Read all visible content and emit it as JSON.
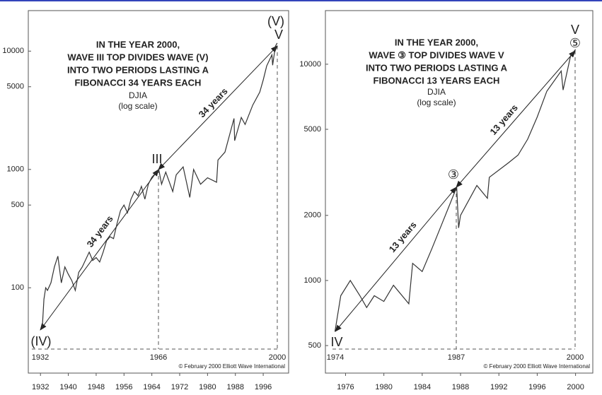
{
  "chart_data": [
    {
      "type": "line",
      "log_scale": true,
      "title": [
        "IN THE YEAR 2000,",
        "WAVE III TOP DIVIDES WAVE (V)",
        "INTO TWO PERIODS LASTING A",
        "FIBONACCI 34 YEARS EACH"
      ],
      "subtitle": [
        "DJIA",
        "(log scale)"
      ],
      "annotations": [
        "(V)",
        "V",
        "III",
        "(IV)",
        "34 years",
        "34 years",
        "1932",
        "1966",
        "2000"
      ],
      "credit": "© February 2000 Elliott Wave International",
      "x": [
        1932.5,
        1933,
        1933.5,
        1934,
        1935,
        1936,
        1937,
        1938,
        1939,
        1940,
        1941,
        1942,
        1943,
        1944,
        1946,
        1947,
        1948,
        1949,
        1950,
        1951,
        1952,
        1953,
        1954,
        1955,
        1956,
        1957,
        1958,
        1959,
        1960,
        1961,
        1962,
        1963,
        1964,
        1966,
        1966.8,
        1968,
        1970,
        1971,
        1973,
        1974.9,
        1976,
        1978,
        1980,
        1982.6,
        1983,
        1985,
        1987.6,
        1987.8,
        1989.7,
        1990.8,
        1993,
        1995,
        1996,
        1997,
        1998.5,
        1998.7,
        1999.5,
        2000
      ],
      "values": [
        45,
        80,
        100,
        95,
        110,
        150,
        185,
        110,
        150,
        130,
        115,
        95,
        135,
        150,
        200,
        170,
        180,
        165,
        200,
        250,
        270,
        260,
        350,
        450,
        500,
        430,
        560,
        650,
        600,
        720,
        560,
        750,
        860,
        995,
        750,
        950,
        650,
        900,
        1050,
        580,
        1000,
        750,
        850,
        780,
        1200,
        1400,
        2700,
        1750,
        2750,
        2400,
        3500,
        4500,
        5700,
        7500,
        9300,
        7600,
        11000,
        11700
      ],
      "color": "#333333",
      "xlim": [
        1928.5,
        2003.3
      ],
      "ylim": [
        19,
        22000
      ],
      "xticks": [
        1932,
        1940,
        1948,
        1956,
        1964,
        1972,
        1980,
        1988,
        1996
      ],
      "yticks": [
        100,
        500,
        1000,
        5000,
        10000
      ]
    },
    {
      "type": "line",
      "log_scale": true,
      "title": [
        "IN THE YEAR 2000,",
        "WAVE ③ TOP DIVIDES WAVE V",
        "INTO TWO PERIODS LASTING A",
        "FIBONACCI 13 YEARS EACH"
      ],
      "subtitle": [
        "DJIA",
        "(log scale)"
      ],
      "annotations": [
        "V",
        "⑤",
        "③",
        "IV",
        "13 years",
        "13 years",
        "1974",
        "1987",
        "2000"
      ],
      "credit": "© February 2000 Elliott Wave International",
      "x": [
        1974.9,
        1975.5,
        1976.5,
        1977.5,
        1978.2,
        1979,
        1980,
        1981,
        1982.6,
        1983,
        1984,
        1985,
        1986,
        1987.6,
        1987.8,
        1988,
        1989.7,
        1990.8,
        1991,
        1993,
        1994,
        1995,
        1996,
        1997,
        1998.5,
        1998.7,
        1999.5,
        2000
      ],
      "values": [
        580,
        850,
        1000,
        850,
        750,
        850,
        800,
        950,
        780,
        1200,
        1100,
        1400,
        1800,
        2700,
        1750,
        2000,
        2750,
        2400,
        3000,
        3500,
        3800,
        4500,
        5700,
        7500,
        9300,
        7600,
        11000,
        11700
      ],
      "color": "#333333",
      "xlim": [
        1973.9,
        2001.8
      ],
      "ylim": [
        373,
        17700
      ],
      "xticks": [
        1976,
        1980,
        1984,
        1988,
        1992,
        1996,
        2000
      ],
      "yticks": [
        500,
        1000,
        2000,
        5000,
        10000
      ]
    }
  ]
}
